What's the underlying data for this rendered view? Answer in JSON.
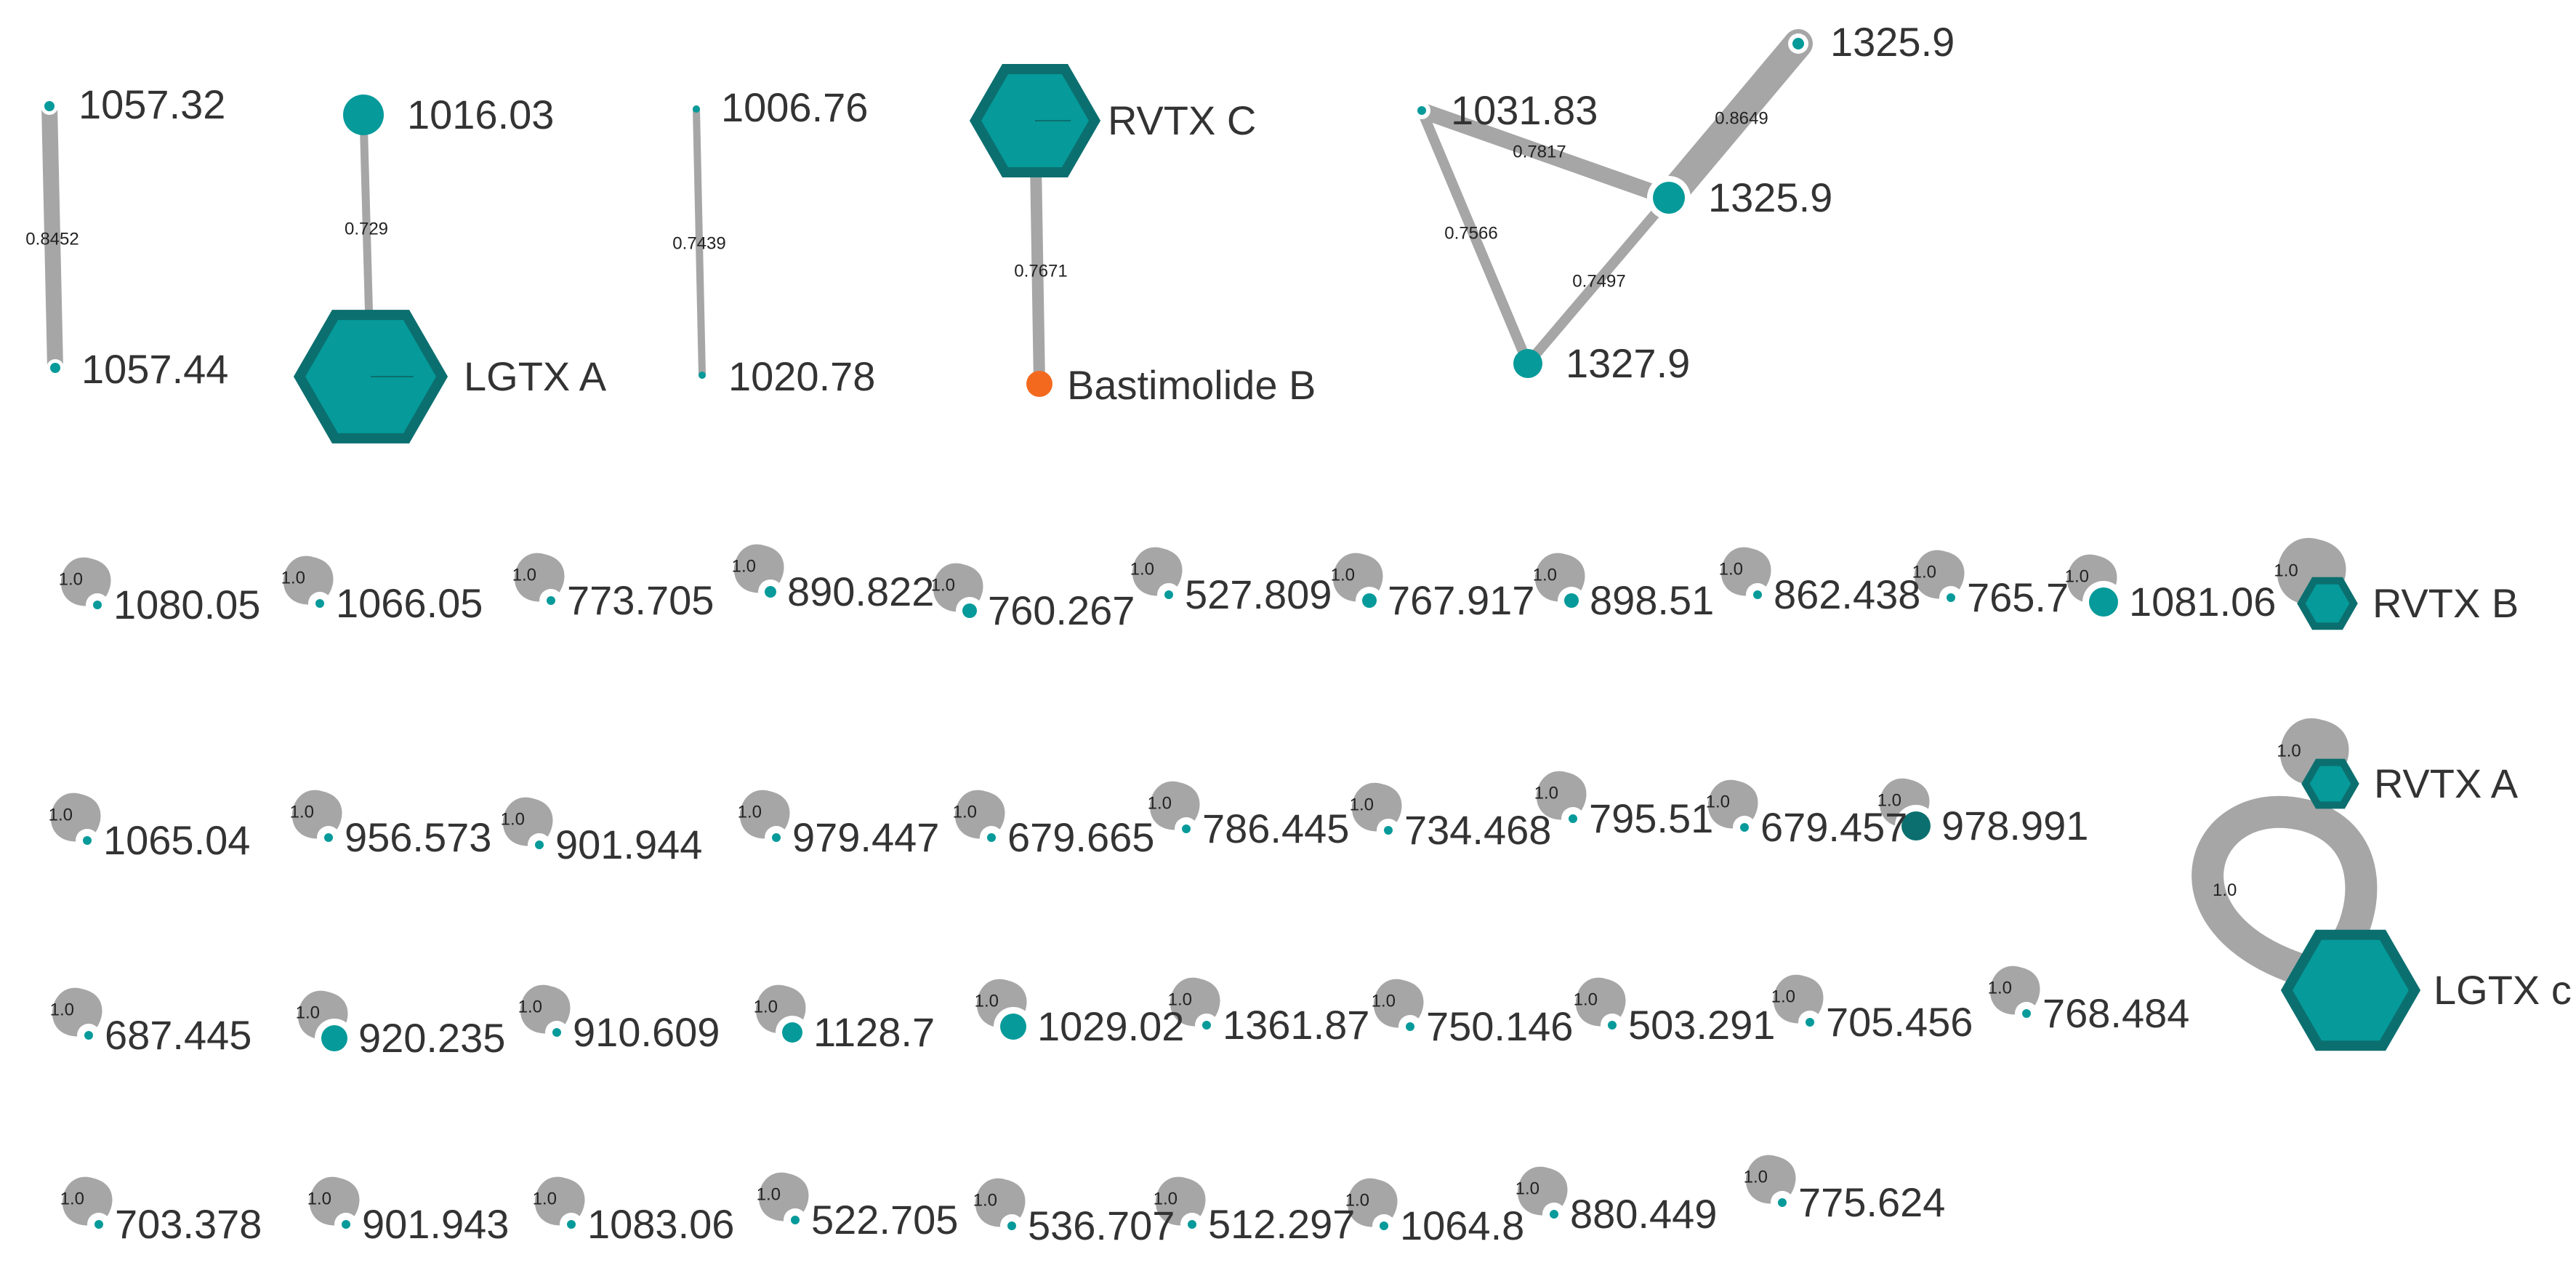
{
  "colors": {
    "node_fill": "#069a9a",
    "node_stroke": "#0c6f6f",
    "highlight_node": "#f36a1f",
    "edge": "#a6a6a6",
    "node_ring": "#ffffff"
  },
  "network": {
    "components": [
      {
        "nodes": [
          {
            "id": "n1",
            "label": "1057.32"
          },
          {
            "id": "n2",
            "label": "1057.44"
          }
        ],
        "edges": [
          {
            "source": "n1",
            "target": "n2",
            "weight": "0.8452"
          }
        ]
      },
      {
        "nodes": [
          {
            "id": "n3",
            "label": "1016.03"
          },
          {
            "id": "n4",
            "label": "LGTX A",
            "shape": "hexagon"
          }
        ],
        "edges": [
          {
            "source": "n3",
            "target": "n4",
            "weight": "0.729"
          }
        ]
      },
      {
        "nodes": [
          {
            "id": "n5",
            "label": "1006.76"
          },
          {
            "id": "n6",
            "label": "1020.78"
          }
        ],
        "edges": [
          {
            "source": "n5",
            "target": "n6",
            "weight": "0.7439"
          }
        ]
      },
      {
        "nodes": [
          {
            "id": "n7",
            "label": "RVTX C",
            "shape": "hexagon"
          },
          {
            "id": "n8",
            "label": "Bastimolide B",
            "highlight": true
          }
        ],
        "edges": [
          {
            "source": "n7",
            "target": "n8",
            "weight": "0.7671"
          }
        ]
      },
      {
        "nodes": [
          {
            "id": "n9",
            "label": "1031.83"
          },
          {
            "id": "n10",
            "label": "1325.9"
          },
          {
            "id": "n11",
            "label": "1325.9"
          },
          {
            "id": "n12",
            "label": "1327.9"
          }
        ],
        "edges": [
          {
            "source": "n9",
            "target": "n10",
            "weight": "0.7817"
          },
          {
            "source": "n10",
            "target": "n11",
            "weight": "0.8649"
          },
          {
            "source": "n9",
            "target": "n12",
            "weight": "0.7566"
          },
          {
            "source": "n10",
            "target": "n12",
            "weight": "0.7497"
          }
        ]
      }
    ],
    "self_loop_weight": "1.0",
    "singletons": [
      {
        "label": "1080.05"
      },
      {
        "label": "1066.05"
      },
      {
        "label": "773.705"
      },
      {
        "label": "890.822"
      },
      {
        "label": "760.267"
      },
      {
        "label": "527.809"
      },
      {
        "label": "767.917"
      },
      {
        "label": "898.51"
      },
      {
        "label": "862.438"
      },
      {
        "label": "765.7"
      },
      {
        "label": "1081.06"
      },
      {
        "label": "RVTX B",
        "shape": "hexagon"
      },
      {
        "label": "RVTX A",
        "shape": "hexagon"
      },
      {
        "label": "1065.04"
      },
      {
        "label": "956.573"
      },
      {
        "label": "901.944"
      },
      {
        "label": "979.447"
      },
      {
        "label": "679.665"
      },
      {
        "label": "786.445"
      },
      {
        "label": "734.468"
      },
      {
        "label": "795.51"
      },
      {
        "label": "679.457"
      },
      {
        "label": "978.991"
      },
      {
        "label": "LGTX c",
        "shape": "hexagon"
      },
      {
        "label": "687.445"
      },
      {
        "label": "920.235"
      },
      {
        "label": "910.609"
      },
      {
        "label": "1128.7"
      },
      {
        "label": "1029.02"
      },
      {
        "label": "1361.87"
      },
      {
        "label": "750.146"
      },
      {
        "label": "503.291"
      },
      {
        "label": "705.456"
      },
      {
        "label": "768.484"
      },
      {
        "label": "703.378"
      },
      {
        "label": "901.943"
      },
      {
        "label": "1083.06"
      },
      {
        "label": "522.705"
      },
      {
        "label": "536.707"
      },
      {
        "label": "512.297"
      },
      {
        "label": "1064.8"
      },
      {
        "label": "880.449"
      },
      {
        "label": "775.624"
      }
    ]
  }
}
